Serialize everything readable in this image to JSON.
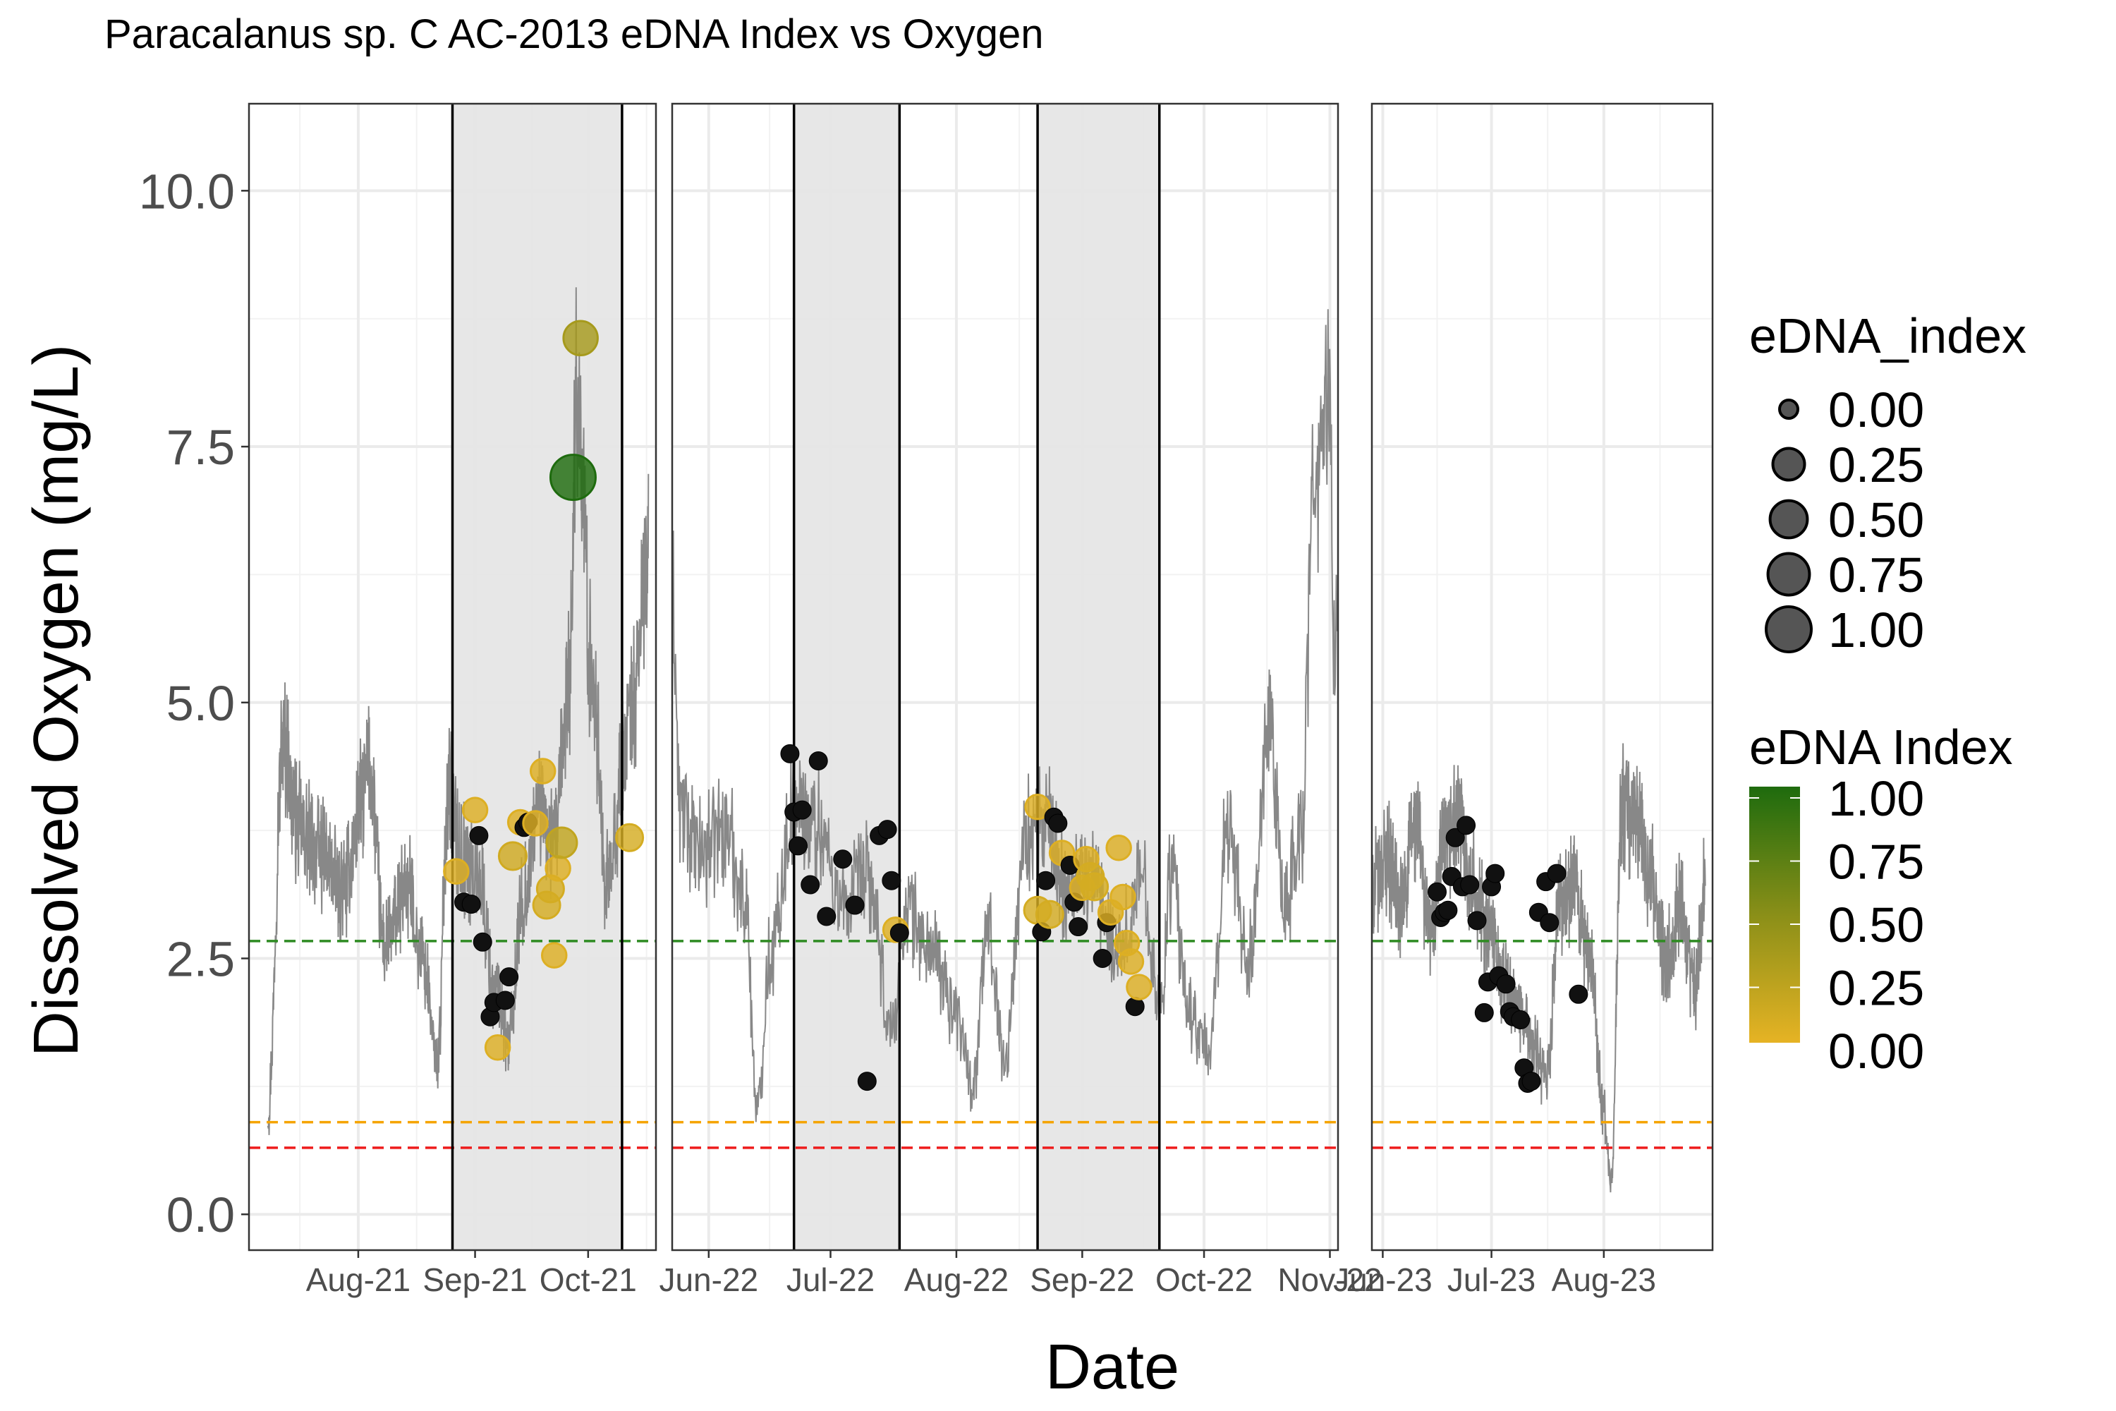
{
  "chart_data": {
    "type": "scatter",
    "title": "Paracalanus sp. C AC-2013 eDNA Index vs Oxygen",
    "xlabel": "Date",
    "ylabel": "Dissolved Oxygen (mg/L)",
    "ylim": [
      -0.35,
      10.85
    ],
    "y_ticks": [
      {
        "value": 0.0,
        "label": "0.0"
      },
      {
        "value": 2.5,
        "label": "2.5"
      },
      {
        "value": 5.0,
        "label": "5.0"
      },
      {
        "value": 7.5,
        "label": "7.5"
      },
      {
        "value": 10.0,
        "label": "10.0"
      }
    ],
    "grid": true,
    "legend_placement": "right",
    "colors": {
      "low": "#E6B324",
      "high": "#1E6B0E",
      "zero_point": "#111111",
      "oxygen_line": "#888888",
      "shade": "#e5e5e5",
      "threshold_green": "#2e8b22",
      "threshold_orange": "#f5a400",
      "threshold_red": "#ee1c1c"
    },
    "reference_lines": [
      {
        "y": 2.67,
        "color": "#2e8b22"
      },
      {
        "y": 0.9,
        "color": "#f5a400"
      },
      {
        "y": 0.65,
        "color": "#ee1c1c"
      }
    ],
    "panels": [
      {
        "xlim": [
          "2021-07-03",
          "2021-10-19"
        ],
        "x_ticks": [
          {
            "date": "2021-08-01",
            "label": "Aug-21"
          },
          {
            "date": "2021-09-01",
            "label": "Sep-21"
          },
          {
            "date": "2021-10-01",
            "label": "Oct-21"
          }
        ],
        "shaded_periods": [
          [
            "2021-08-26",
            "2021-10-10"
          ]
        ],
        "do_anchors": [
          [
            "2021-07-08",
            1.0
          ],
          [
            "2021-07-12",
            4.6
          ],
          [
            "2021-07-16",
            3.8
          ],
          [
            "2021-07-22",
            3.5
          ],
          [
            "2021-07-28",
            3.2
          ],
          [
            "2021-08-04",
            4.3
          ],
          [
            "2021-08-08",
            2.6
          ],
          [
            "2021-08-14",
            3.2
          ],
          [
            "2021-08-18",
            2.5
          ],
          [
            "2021-08-22",
            1.5
          ],
          [
            "2021-08-25",
            4.2
          ],
          [
            "2021-08-28",
            3.5
          ],
          [
            "2021-09-02",
            3.3
          ],
          [
            "2021-09-06",
            2.2
          ],
          [
            "2021-09-10",
            1.7
          ],
          [
            "2021-09-14",
            3.1
          ],
          [
            "2021-09-18",
            4.0
          ],
          [
            "2021-09-22",
            3.6
          ],
          [
            "2021-09-26",
            5.2
          ],
          [
            "2021-09-28",
            8.0
          ],
          [
            "2021-10-02",
            5.3
          ],
          [
            "2021-10-06",
            3.2
          ],
          [
            "2021-10-12",
            4.8
          ],
          [
            "2021-10-17",
            6.3
          ]
        ],
        "points": [
          {
            "date": "2021-08-27",
            "do": 3.35,
            "edna": 0.05
          },
          {
            "date": "2021-08-29",
            "do": 3.05,
            "edna": 0.0
          },
          {
            "date": "2021-08-31",
            "do": 3.03,
            "edna": 0.0
          },
          {
            "date": "2021-09-01",
            "do": 3.95,
            "edna": 0.05
          },
          {
            "date": "2021-09-02",
            "do": 3.7,
            "edna": 0.0
          },
          {
            "date": "2021-09-03",
            "do": 2.66,
            "edna": 0.0
          },
          {
            "date": "2021-09-05",
            "do": 1.93,
            "edna": 0.0
          },
          {
            "date": "2021-09-06",
            "do": 2.07,
            "edna": 0.0
          },
          {
            "date": "2021-09-07",
            "do": 1.63,
            "edna": 0.05
          },
          {
            "date": "2021-09-09",
            "do": 2.09,
            "edna": 0.0
          },
          {
            "date": "2021-09-10",
            "do": 2.32,
            "edna": 0.0
          },
          {
            "date": "2021-09-11",
            "do": 3.5,
            "edna": 0.12
          },
          {
            "date": "2021-09-13",
            "do": 3.83,
            "edna": 0.05
          },
          {
            "date": "2021-09-14",
            "do": 3.78,
            "edna": 0.0
          },
          {
            "date": "2021-09-15",
            "do": 3.83,
            "edna": 0.0
          },
          {
            "date": "2021-09-17",
            "do": 3.82,
            "edna": 0.05
          },
          {
            "date": "2021-09-19",
            "do": 4.33,
            "edna": 0.05
          },
          {
            "date": "2021-09-20",
            "do": 3.02,
            "edna": 0.1
          },
          {
            "date": "2021-09-21",
            "do": 3.18,
            "edna": 0.1
          },
          {
            "date": "2021-09-22",
            "do": 2.53,
            "edna": 0.05
          },
          {
            "date": "2021-09-23",
            "do": 3.38,
            "edna": 0.05
          },
          {
            "date": "2021-09-24",
            "do": 3.63,
            "edna": 0.2
          },
          {
            "date": "2021-09-27",
            "do": 7.2,
            "edna": 1.0
          },
          {
            "date": "2021-09-29",
            "do": 8.56,
            "edna": 0.35
          },
          {
            "date": "2021-10-12",
            "do": 3.68,
            "edna": 0.1
          }
        ]
      },
      {
        "xlim": [
          "2021-05-23",
          "2021-11-03"
        ],
        "x_ticks": [
          {
            "date": "2021-06-01",
            "label": "Jun-22"
          },
          {
            "date": "2021-07-01",
            "label": "Jul-22"
          },
          {
            "date": "2021-08-01",
            "label": "Aug-22"
          },
          {
            "date": "2021-09-01",
            "label": "Sep-22"
          },
          {
            "date": "2021-10-01",
            "label": "Oct-22"
          },
          {
            "date": "2021-11-01",
            "label": "Nov-22"
          }
        ],
        "shaded_periods": [
          [
            "2021-06-22",
            "2021-07-18"
          ],
          [
            "2021-08-21",
            "2021-09-20"
          ]
        ],
        "do_anchors": [
          [
            "2021-05-23",
            6.0
          ],
          [
            "2021-05-25",
            4.0
          ],
          [
            "2021-05-30",
            3.5
          ],
          [
            "2021-06-05",
            3.8
          ],
          [
            "2021-06-10",
            3.1
          ],
          [
            "2021-06-13",
            1.0
          ],
          [
            "2021-06-16",
            2.5
          ],
          [
            "2021-06-22",
            4.0
          ],
          [
            "2021-06-28",
            3.8
          ],
          [
            "2021-07-04",
            3.0
          ],
          [
            "2021-07-10",
            3.3
          ],
          [
            "2021-07-16",
            1.8
          ],
          [
            "2021-07-20",
            3.0
          ],
          [
            "2021-07-25",
            2.6
          ],
          [
            "2021-08-01",
            2.0
          ],
          [
            "2021-08-05",
            1.3
          ],
          [
            "2021-08-09",
            2.8
          ],
          [
            "2021-08-13",
            1.5
          ],
          [
            "2021-08-18",
            3.7
          ],
          [
            "2021-08-23",
            3.8
          ],
          [
            "2021-08-28",
            3.2
          ],
          [
            "2021-09-03",
            3.3
          ],
          [
            "2021-09-10",
            2.6
          ],
          [
            "2021-09-16",
            3.3
          ],
          [
            "2021-09-20",
            2.0
          ],
          [
            "2021-09-23",
            3.3
          ],
          [
            "2021-09-27",
            2.0
          ],
          [
            "2021-10-02",
            1.6
          ],
          [
            "2021-10-07",
            3.8
          ],
          [
            "2021-10-12",
            2.5
          ],
          [
            "2021-10-17",
            4.6
          ],
          [
            "2021-10-21",
            3.0
          ],
          [
            "2021-10-25",
            3.8
          ],
          [
            "2021-10-28",
            7.0
          ],
          [
            "2021-10-30",
            7.5
          ],
          [
            "2021-11-01",
            8.0
          ],
          [
            "2021-11-02",
            5.5
          ],
          [
            "2021-11-03",
            6.2
          ]
        ],
        "points": [
          {
            "date": "2021-06-21",
            "do": 4.5,
            "edna": 0.0
          },
          {
            "date": "2021-06-22",
            "do": 3.93,
            "edna": 0.0
          },
          {
            "date": "2021-06-23",
            "do": 3.6,
            "edna": 0.0
          },
          {
            "date": "2021-06-24",
            "do": 3.95,
            "edna": 0.0
          },
          {
            "date": "2021-06-26",
            "do": 3.22,
            "edna": 0.0
          },
          {
            "date": "2021-06-28",
            "do": 4.43,
            "edna": 0.0
          },
          {
            "date": "2021-06-30",
            "do": 2.91,
            "edna": 0.0
          },
          {
            "date": "2021-07-04",
            "do": 3.47,
            "edna": 0.0
          },
          {
            "date": "2021-07-07",
            "do": 3.02,
            "edna": 0.0
          },
          {
            "date": "2021-07-10",
            "do": 1.3,
            "edna": 0.0
          },
          {
            "date": "2021-07-13",
            "do": 3.7,
            "edna": 0.0
          },
          {
            "date": "2021-07-15",
            "do": 3.76,
            "edna": 0.0
          },
          {
            "date": "2021-07-16",
            "do": 3.26,
            "edna": 0.0
          },
          {
            "date": "2021-07-17",
            "do": 2.78,
            "edna": 0.05
          },
          {
            "date": "2021-07-18",
            "do": 2.75,
            "edna": 0.0
          },
          {
            "date": "2021-08-21",
            "do": 3.98,
            "edna": 0.05
          },
          {
            "date": "2021-08-21",
            "do": 2.97,
            "edna": 0.1
          },
          {
            "date": "2021-08-22",
            "do": 2.76,
            "edna": 0.0
          },
          {
            "date": "2021-08-23",
            "do": 3.26,
            "edna": 0.0
          },
          {
            "date": "2021-08-24",
            "do": 2.93,
            "edna": 0.1
          },
          {
            "date": "2021-08-25",
            "do": 3.88,
            "edna": 0.0
          },
          {
            "date": "2021-08-26",
            "do": 3.82,
            "edna": 0.0
          },
          {
            "date": "2021-08-27",
            "do": 3.53,
            "edna": 0.05
          },
          {
            "date": "2021-08-29",
            "do": 3.41,
            "edna": 0.0
          },
          {
            "date": "2021-08-30",
            "do": 3.05,
            "edna": 0.0
          },
          {
            "date": "2021-08-31",
            "do": 2.81,
            "edna": 0.0
          },
          {
            "date": "2021-09-01",
            "do": 3.19,
            "edna": 0.05
          },
          {
            "date": "2021-09-02",
            "do": 3.47,
            "edna": 0.05
          },
          {
            "date": "2021-09-03",
            "do": 3.3,
            "edna": 0.1
          },
          {
            "date": "2021-09-04",
            "do": 3.2,
            "edna": 0.1
          },
          {
            "date": "2021-09-06",
            "do": 2.5,
            "edna": 0.0
          },
          {
            "date": "2021-09-07",
            "do": 2.85,
            "edna": 0.0
          },
          {
            "date": "2021-09-08",
            "do": 2.95,
            "edna": 0.05
          },
          {
            "date": "2021-09-10",
            "do": 3.58,
            "edna": 0.05
          },
          {
            "date": "2021-09-11",
            "do": 3.1,
            "edna": 0.05
          },
          {
            "date": "2021-09-12",
            "do": 2.65,
            "edna": 0.05
          },
          {
            "date": "2021-09-13",
            "do": 2.47,
            "edna": 0.05
          },
          {
            "date": "2021-09-14",
            "do": 2.03,
            "edna": 0.0
          },
          {
            "date": "2021-09-15",
            "do": 2.22,
            "edna": 0.05
          }
        ]
      },
      {
        "xlim": [
          "2021-05-29",
          "2021-08-31"
        ],
        "x_ticks": [
          {
            "date": "2021-06-01",
            "label": "Jun-23"
          },
          {
            "date": "2021-07-01",
            "label": "Jul-23"
          },
          {
            "date": "2021-08-01",
            "label": "Aug-23"
          }
        ],
        "shaded_periods": [],
        "do_anchors": [
          [
            "2021-05-29",
            3.2
          ],
          [
            "2021-06-02",
            3.5
          ],
          [
            "2021-06-06",
            3.0
          ],
          [
            "2021-06-10",
            3.8
          ],
          [
            "2021-06-14",
            2.8
          ],
          [
            "2021-06-18",
            3.5
          ],
          [
            "2021-06-22",
            3.9
          ],
          [
            "2021-06-26",
            3.2
          ],
          [
            "2021-06-30",
            2.8
          ],
          [
            "2021-07-04",
            2.3
          ],
          [
            "2021-07-08",
            2.0
          ],
          [
            "2021-07-12",
            1.7
          ],
          [
            "2021-07-16",
            1.3
          ],
          [
            "2021-07-20",
            3.0
          ],
          [
            "2021-07-24",
            3.2
          ],
          [
            "2021-07-28",
            2.5
          ],
          [
            "2021-08-01",
            1.0
          ],
          [
            "2021-08-03",
            0.3
          ],
          [
            "2021-08-06",
            4.0
          ],
          [
            "2021-08-10",
            3.8
          ],
          [
            "2021-08-14",
            3.3
          ],
          [
            "2021-08-18",
            2.5
          ],
          [
            "2021-08-22",
            3.0
          ],
          [
            "2021-08-26",
            2.2
          ],
          [
            "2021-08-29",
            3.2
          ]
        ],
        "points": [
          {
            "date": "2021-06-16",
            "do": 3.15,
            "edna": 0.0
          },
          {
            "date": "2021-06-17",
            "do": 2.9,
            "edna": 0.0
          },
          {
            "date": "2021-06-18",
            "do": 2.95,
            "edna": 0.0
          },
          {
            "date": "2021-06-19",
            "do": 2.97,
            "edna": 0.0
          },
          {
            "date": "2021-06-20",
            "do": 3.3,
            "edna": 0.0
          },
          {
            "date": "2021-06-21",
            "do": 3.68,
            "edna": 0.0
          },
          {
            "date": "2021-06-23",
            "do": 3.2,
            "edna": 0.0
          },
          {
            "date": "2021-06-24",
            "do": 3.8,
            "edna": 0.0
          },
          {
            "date": "2021-06-25",
            "do": 3.22,
            "edna": 0.0
          },
          {
            "date": "2021-06-27",
            "do": 2.87,
            "edna": 0.0
          },
          {
            "date": "2021-06-29",
            "do": 1.97,
            "edna": 0.0
          },
          {
            "date": "2021-06-30",
            "do": 2.27,
            "edna": 0.0
          },
          {
            "date": "2021-07-01",
            "do": 3.2,
            "edna": 0.0
          },
          {
            "date": "2021-07-02",
            "do": 3.33,
            "edna": 0.0
          },
          {
            "date": "2021-07-03",
            "do": 2.33,
            "edna": 0.0
          },
          {
            "date": "2021-07-05",
            "do": 2.25,
            "edna": 0.0
          },
          {
            "date": "2021-07-06",
            "do": 1.98,
            "edna": 0.0
          },
          {
            "date": "2021-07-07",
            "do": 1.93,
            "edna": 0.0
          },
          {
            "date": "2021-07-09",
            "do": 1.9,
            "edna": 0.0
          },
          {
            "date": "2021-07-10",
            "do": 1.43,
            "edna": 0.0
          },
          {
            "date": "2021-07-11",
            "do": 1.28,
            "edna": 0.0
          },
          {
            "date": "2021-07-12",
            "do": 1.3,
            "edna": 0.0
          },
          {
            "date": "2021-07-14",
            "do": 2.95,
            "edna": 0.0
          },
          {
            "date": "2021-07-16",
            "do": 3.25,
            "edna": 0.0
          },
          {
            "date": "2021-07-17",
            "do": 2.85,
            "edna": 0.0
          },
          {
            "date": "2021-07-19",
            "do": 3.33,
            "edna": 0.0
          },
          {
            "date": "2021-07-25",
            "do": 2.15,
            "edna": 0.0
          }
        ]
      }
    ],
    "legend": {
      "size_title": "eDNA_index",
      "size_entries": [
        {
          "value": 0.0,
          "label": "0.00"
        },
        {
          "value": 0.25,
          "label": "0.25"
        },
        {
          "value": 0.5,
          "label": "0.50"
        },
        {
          "value": 0.75,
          "label": "0.75"
        },
        {
          "value": 1.0,
          "label": "1.00"
        }
      ],
      "color_title": "eDNA Index",
      "color_entries": [
        {
          "value": 1.0,
          "label": "1.00"
        },
        {
          "value": 0.75,
          "label": "0.75"
        },
        {
          "value": 0.5,
          "label": "0.50"
        },
        {
          "value": 0.25,
          "label": "0.25"
        },
        {
          "value": 0.0,
          "label": "0.00"
        }
      ]
    }
  }
}
